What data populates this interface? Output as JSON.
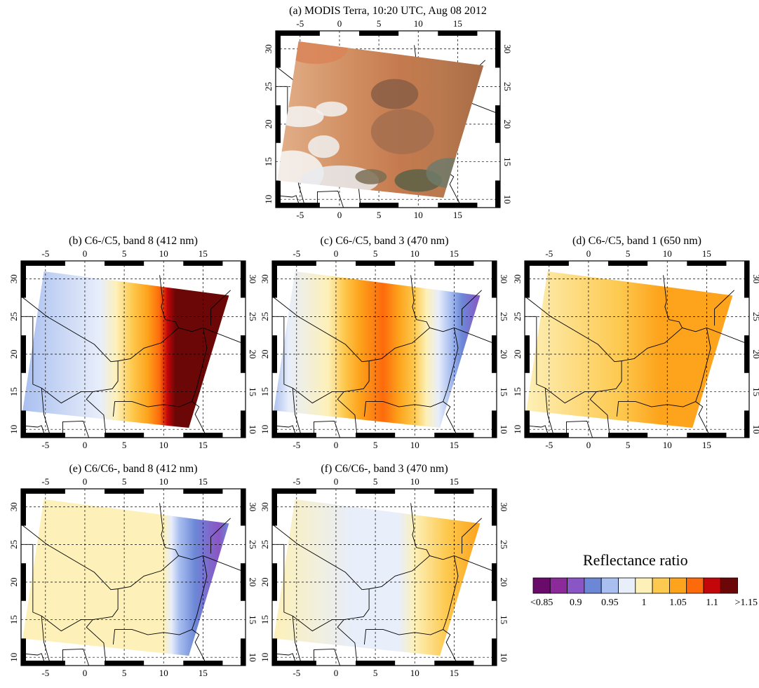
{
  "panels": [
    {
      "title": "(a) MODIS Terra, 10:20 UTC, Aug 08 2012"
    },
    {
      "title": "(b) C6-/C5, band 8 (412 nm)"
    },
    {
      "title": "(c) C6-/C5, band 3 (470 nm)"
    },
    {
      "title": "(d) C6-/C5, band 1 (650 nm)"
    },
    {
      "title": "(e) C6/C6-, band 8 (412 nm)"
    },
    {
      "title": "(f) C6/C6-, band 3 (470 nm)"
    }
  ],
  "map": {
    "lon_range": [
      -8.1,
      20.4
    ],
    "lat_range": [
      8.9,
      32.4
    ],
    "lon_ticks": [
      -5,
      0,
      5,
      10,
      15
    ],
    "lat_ticks": [
      10,
      15,
      20,
      25,
      30
    ],
    "grid": true
  },
  "colorbar": {
    "title": "Reflectance ratio",
    "colors": [
      "#6a0a6b",
      "#8b2a98",
      "#8a55c4",
      "#6c87d6",
      "#a9bff0",
      "#e8eefa",
      "#fdf0b8",
      "#fdc94f",
      "#fda31c",
      "#fd6a0c",
      "#c3060a",
      "#6b0706"
    ],
    "labels": [
      "<0.85",
      "0.9",
      "0.95",
      "1",
      "1.05",
      "1.1",
      ">1.15"
    ]
  }
}
